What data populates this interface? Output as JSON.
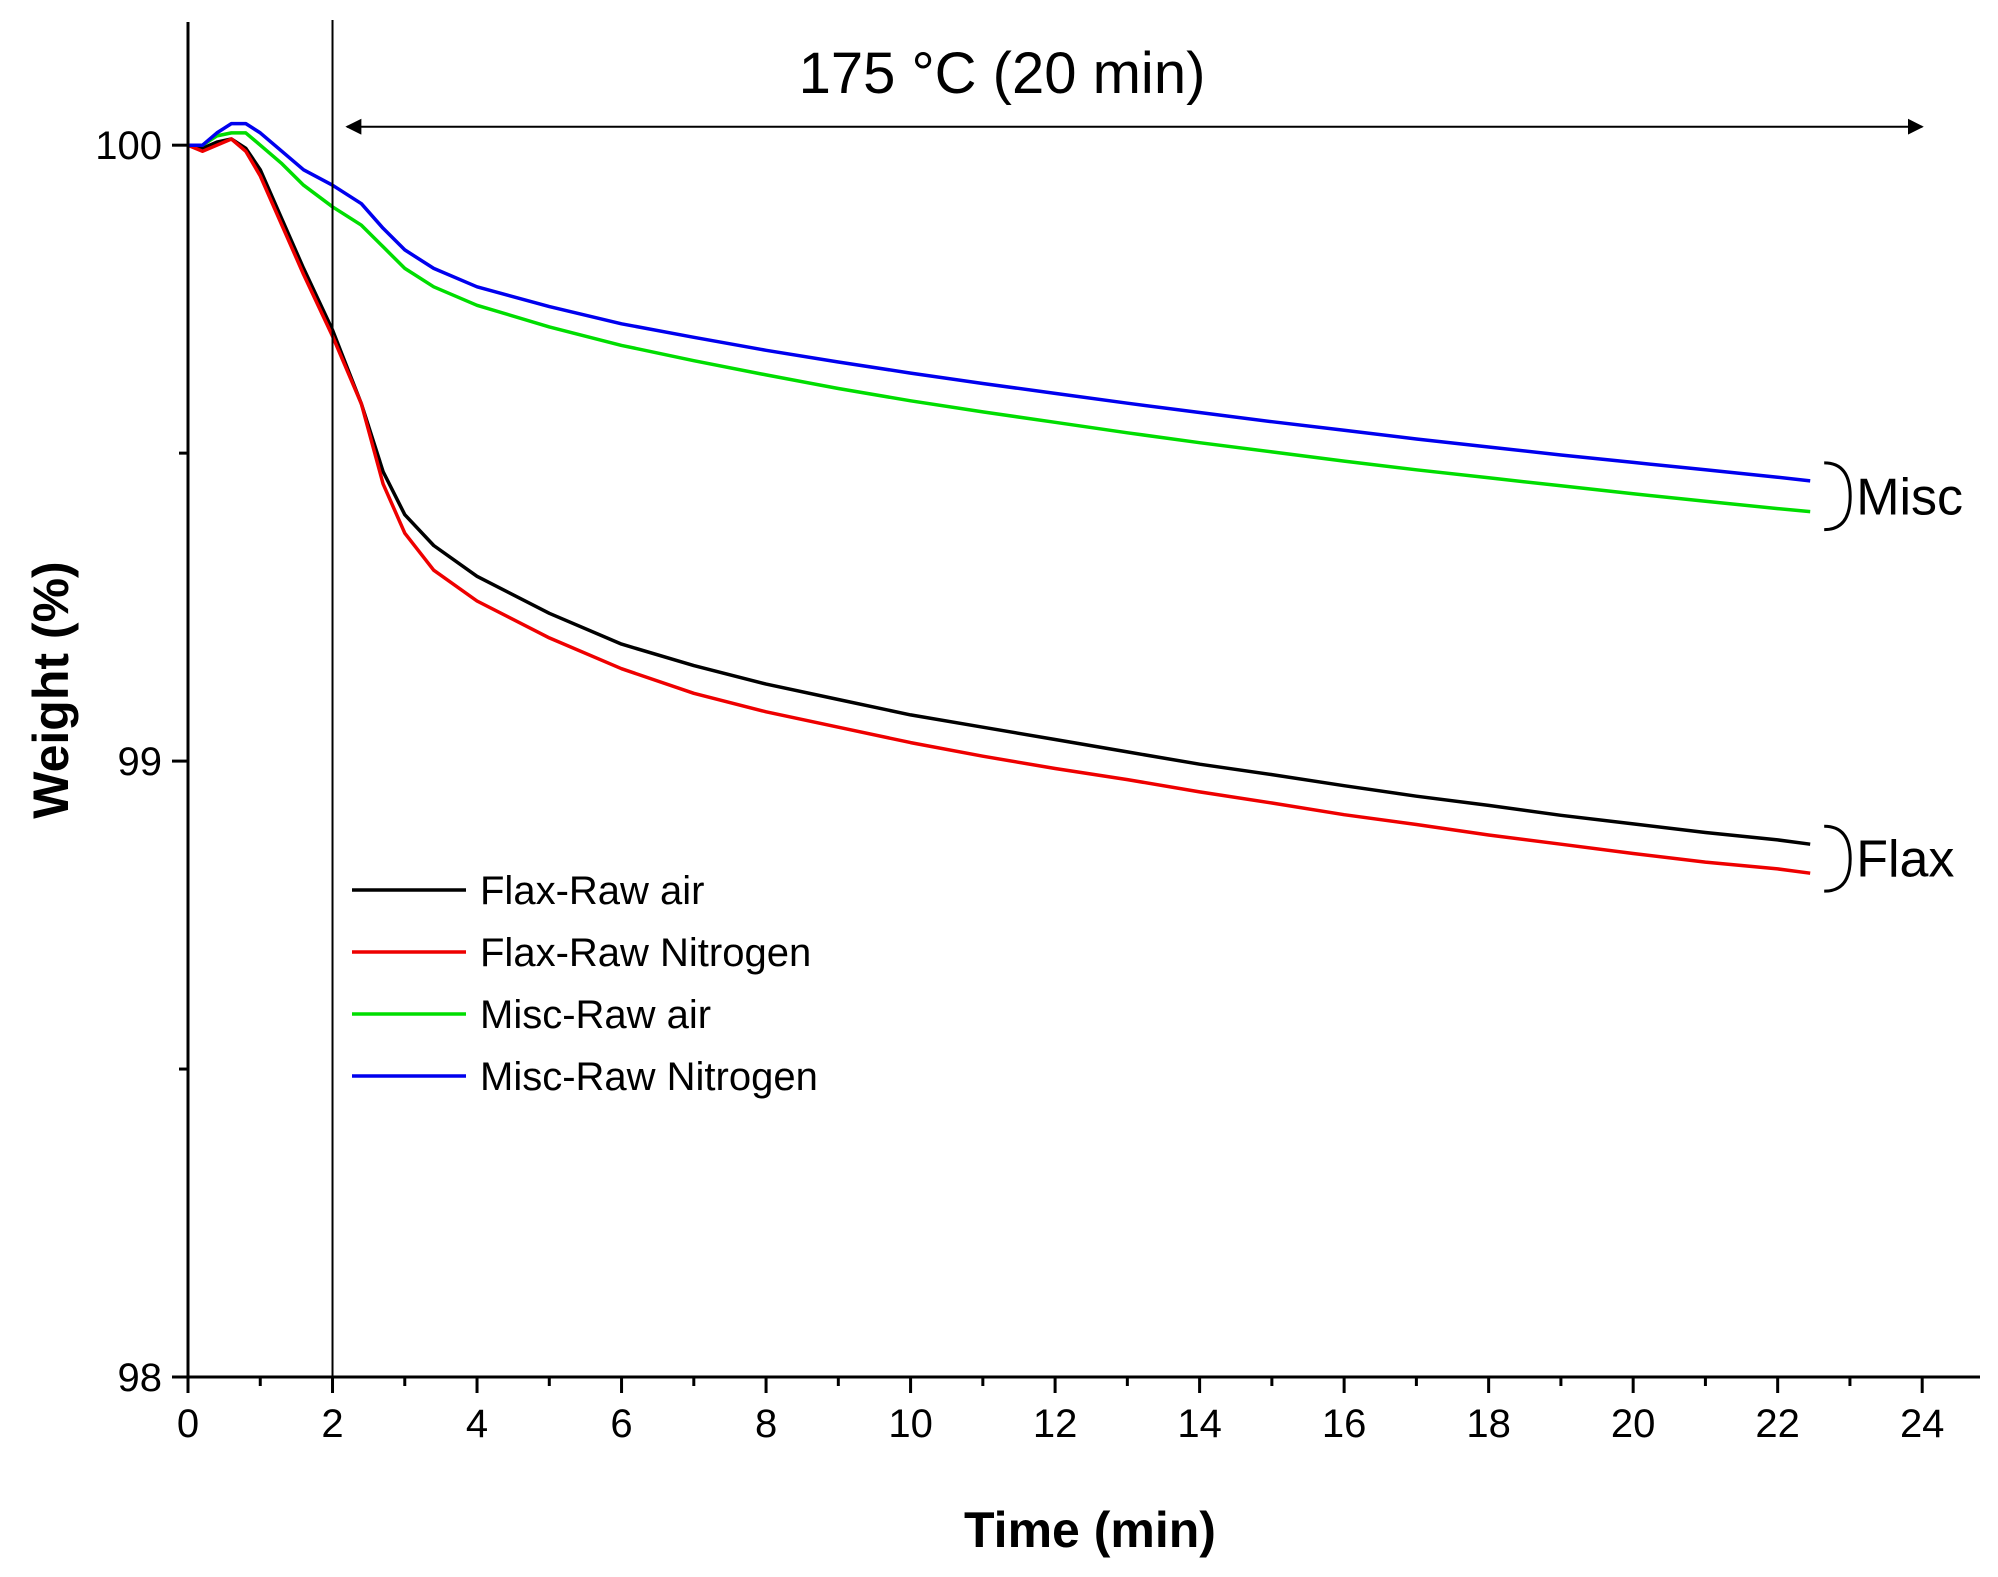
{
  "chart_data": {
    "type": "line",
    "title": "",
    "xlabel": "Time (min)",
    "ylabel": "Weight (%)",
    "xlim": [
      0,
      24.8
    ],
    "ylim": [
      98,
      100.2
    ],
    "x_ticks": [
      0,
      2,
      4,
      6,
      8,
      10,
      12,
      14,
      16,
      18,
      20,
      22,
      24
    ],
    "x_tick_labels": [
      "0",
      "2",
      "4",
      "6",
      "8",
      "10",
      "12",
      "14",
      "16",
      "18",
      "20",
      "22",
      "24"
    ],
    "y_ticks": [
      98,
      99,
      100
    ],
    "y_tick_labels": [
      "98",
      "99",
      "100"
    ],
    "legend_position": "lower-left",
    "annotation": {
      "text": "175 °C (20 min)",
      "vline_x": 2.0,
      "arrow_from_x": 2.2,
      "arrow_to_x": 24.0,
      "arrow_y": 100.03
    },
    "group_labels": [
      {
        "text": "Misc",
        "series": [
          "Misc-Raw air",
          "Misc-Raw Nitrogen"
        ]
      },
      {
        "text": "Flax",
        "series": [
          "Flax-Raw air",
          "Flax-Raw Nitrogen"
        ]
      }
    ],
    "series": [
      {
        "name": "Flax-Raw air",
        "color": "#000000",
        "x": [
          0,
          0.2,
          0.4,
          0.6,
          0.8,
          1.0,
          1.3,
          1.6,
          2.0,
          2.4,
          2.7,
          3.0,
          3.4,
          4.0,
          5.0,
          6.0,
          7.0,
          8.0,
          9.0,
          10.0,
          11.0,
          12.0,
          13.0,
          14.0,
          15.0,
          16.0,
          17.0,
          18.0,
          19.0,
          20.0,
          21.0,
          22.0,
          22.45
        ],
        "y": [
          100.0,
          99.995,
          100.005,
          100.01,
          99.995,
          99.96,
          99.88,
          99.8,
          99.7,
          99.58,
          99.47,
          99.4,
          99.35,
          99.3,
          99.24,
          99.19,
          99.155,
          99.125,
          99.1,
          99.075,
          99.055,
          99.035,
          99.015,
          98.995,
          98.978,
          98.96,
          98.943,
          98.928,
          98.912,
          98.898,
          98.884,
          98.872,
          98.865
        ]
      },
      {
        "name": "Flax-Raw Nitrogen",
        "color": "#ee0000",
        "x": [
          0,
          0.2,
          0.4,
          0.6,
          0.8,
          1.0,
          1.3,
          1.6,
          2.0,
          2.4,
          2.7,
          3.0,
          3.4,
          4.0,
          5.0,
          6.0,
          7.0,
          8.0,
          9.0,
          10.0,
          11.0,
          12.0,
          13.0,
          14.0,
          15.0,
          16.0,
          17.0,
          18.0,
          19.0,
          20.0,
          21.0,
          22.0,
          22.45
        ],
        "y": [
          100.0,
          99.99,
          100.0,
          100.01,
          99.99,
          99.95,
          99.87,
          99.79,
          99.69,
          99.58,
          99.45,
          99.37,
          99.31,
          99.26,
          99.2,
          99.15,
          99.11,
          99.08,
          99.055,
          99.03,
          99.008,
          98.988,
          98.97,
          98.95,
          98.932,
          98.913,
          98.897,
          98.88,
          98.865,
          98.85,
          98.836,
          98.825,
          98.818
        ]
      },
      {
        "name": "Misc-Raw air",
        "color": "#00dd00",
        "x": [
          0,
          0.2,
          0.4,
          0.6,
          0.8,
          1.0,
          1.3,
          1.6,
          2.0,
          2.4,
          2.7,
          3.0,
          3.4,
          4.0,
          5.0,
          6.0,
          7.0,
          8.0,
          9.0,
          10.0,
          11.0,
          12.0,
          13.0,
          14.0,
          15.0,
          16.0,
          17.0,
          18.0,
          19.0,
          20.0,
          21.0,
          22.0,
          22.45
        ],
        "y": [
          100.0,
          100.0,
          100.015,
          100.02,
          100.02,
          100.0,
          99.97,
          99.935,
          99.9,
          99.87,
          99.835,
          99.8,
          99.77,
          99.74,
          99.705,
          99.675,
          99.65,
          99.627,
          99.605,
          99.585,
          99.567,
          99.55,
          99.533,
          99.517,
          99.502,
          99.487,
          99.473,
          99.46,
          99.447,
          99.434,
          99.422,
          99.41,
          99.405
        ]
      },
      {
        "name": "Misc-Raw Nitrogen",
        "color": "#0000ee",
        "x": [
          0,
          0.2,
          0.4,
          0.6,
          0.8,
          1.0,
          1.3,
          1.6,
          2.0,
          2.4,
          2.7,
          3.0,
          3.4,
          4.0,
          5.0,
          6.0,
          7.0,
          8.0,
          9.0,
          10.0,
          11.0,
          12.0,
          13.0,
          14.0,
          15.0,
          16.0,
          17.0,
          18.0,
          19.0,
          20.0,
          21.0,
          22.0,
          22.45
        ],
        "y": [
          100.0,
          100.0,
          100.02,
          100.035,
          100.035,
          100.02,
          99.99,
          99.96,
          99.935,
          99.905,
          99.865,
          99.83,
          99.8,
          99.77,
          99.738,
          99.71,
          99.688,
          99.667,
          99.648,
          99.63,
          99.613,
          99.597,
          99.581,
          99.566,
          99.551,
          99.537,
          99.523,
          99.51,
          99.497,
          99.485,
          99.473,
          99.461,
          99.455
        ]
      }
    ]
  }
}
